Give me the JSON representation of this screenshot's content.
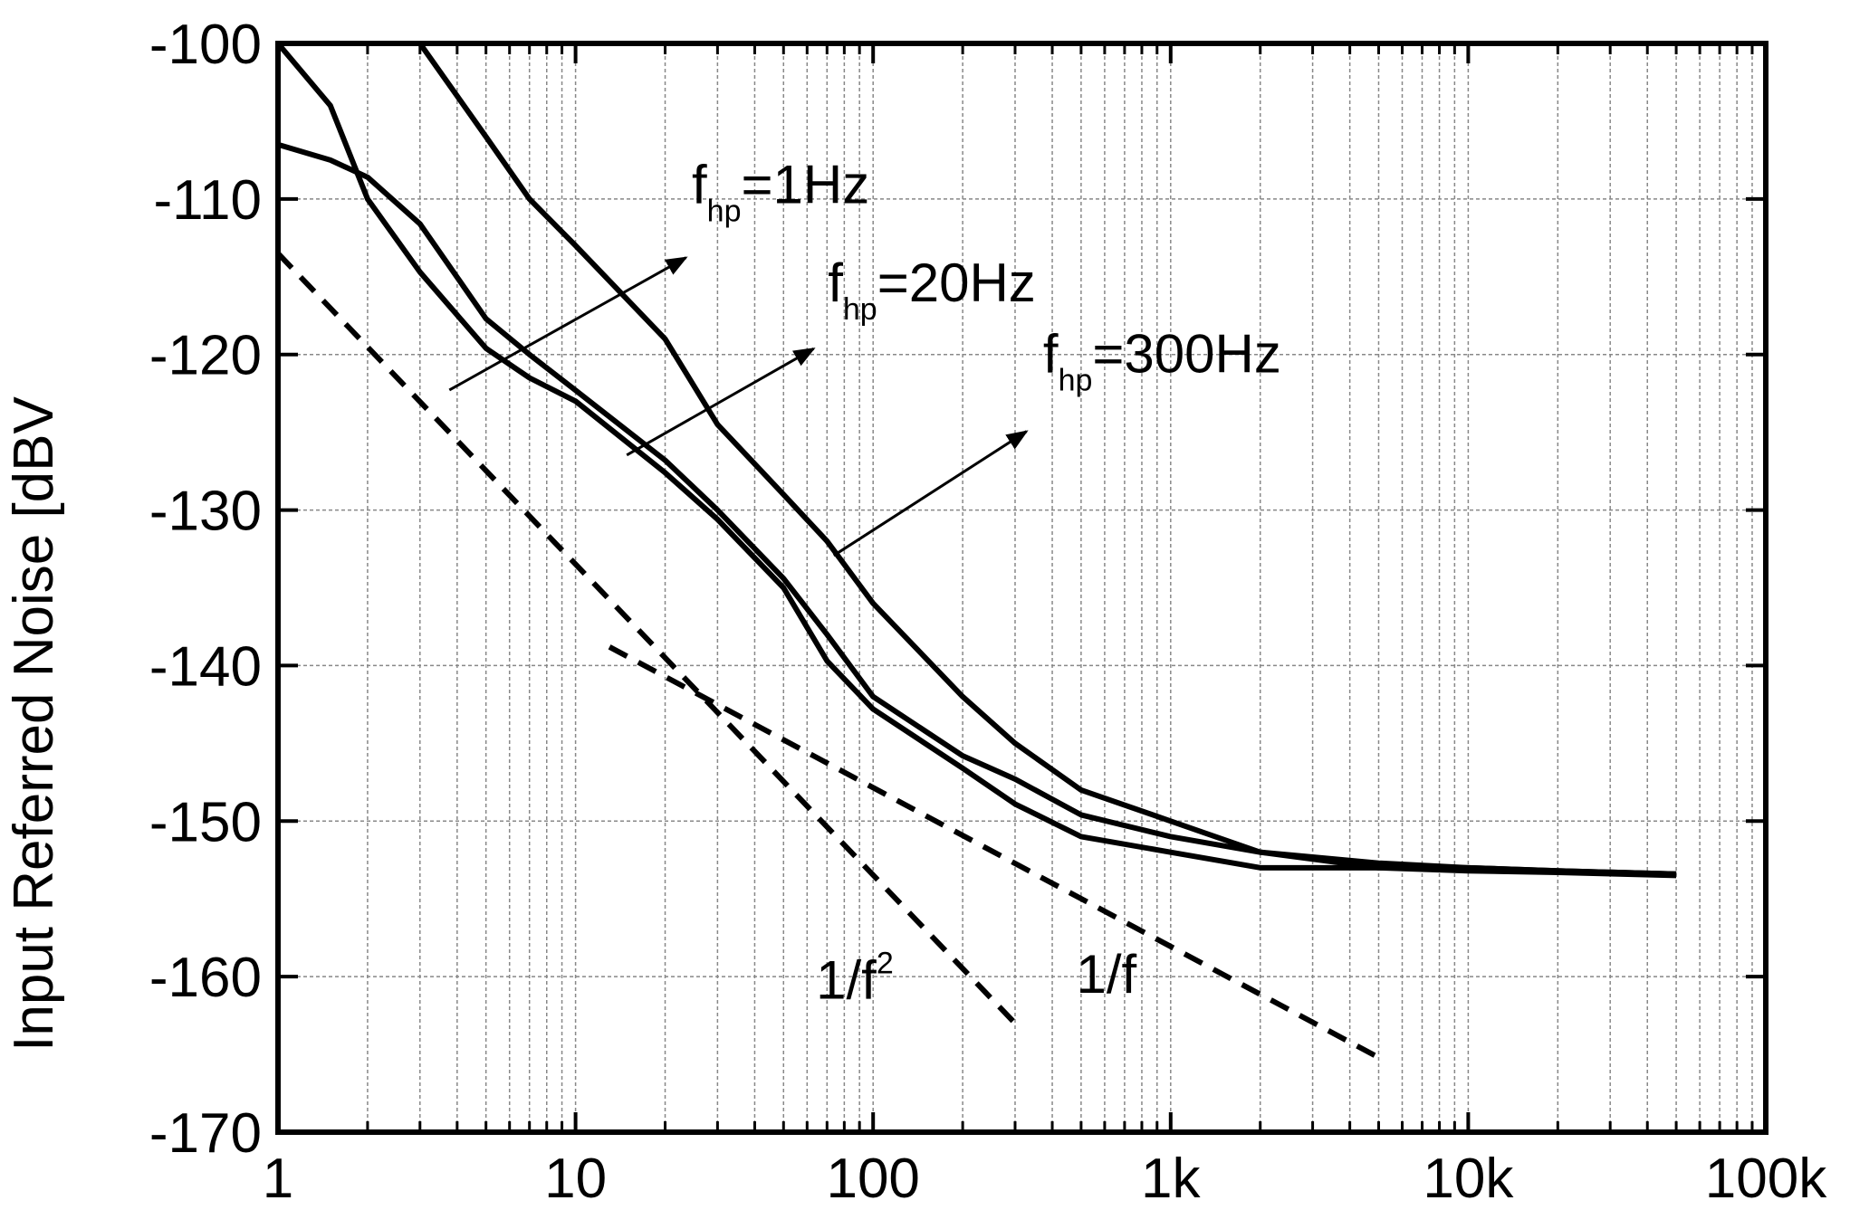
{
  "chart_data": {
    "type": "line",
    "y_label": "Input Referred Noise [dBV",
    "x": [
      1,
      1.5,
      2,
      3,
      5,
      7,
      10,
      20,
      30,
      50,
      70,
      100,
      200,
      300,
      500,
      1000,
      2000,
      5000,
      10000,
      20000,
      50000
    ],
    "series": [
      {
        "color": "#000000",
        "values": [
          null,
          null,
          null,
          -100,
          -106,
          -110,
          -113,
          -119,
          -124.5,
          -129,
          -132,
          -136,
          -142,
          -145,
          -148,
          -150,
          -152,
          -152.7,
          -153,
          -153.2,
          -153.4
        ]
      },
      {
        "color": "#000000",
        "values": [
          -106.5,
          -107.5,
          -108.6,
          -111.6,
          -117.7,
          -120,
          -122.3,
          -126.8,
          -130,
          -134.4,
          -138,
          -142,
          -145.8,
          -147.3,
          -149.6,
          -151,
          -152,
          -153,
          -153,
          -153.2,
          -153.4
        ]
      },
      {
        "color": "#000000",
        "values": [
          -100,
          -104,
          -110,
          -114.7,
          -119.6,
          -121.5,
          -123,
          -127.6,
          -130.6,
          -135,
          -139.7,
          -142.8,
          -146.6,
          -148.9,
          -151,
          -152,
          -153,
          -153,
          -153.2,
          -153.3,
          -153.5
        ]
      }
    ],
    "reference_lines": [
      {
        "x": [
          1,
          300
        ],
        "values": [
          -113.5,
          -163
        ]
      },
      {
        "x": [
          13,
          5000
        ],
        "values": [
          -138.8,
          -165.2
        ]
      }
    ],
    "annotations": [
      {
        "base": "f",
        "sub": "hp",
        "text": "=1Hz"
      },
      {
        "base": "f",
        "sub": "hp",
        "text": "=20Hz"
      },
      {
        "base": "f",
        "sub": "hp",
        "text": "=300Hz"
      }
    ],
    "slope_labels": [
      {
        "text": "1/f",
        "sup": "2"
      },
      {
        "text": "1/f"
      }
    ],
    "xlim": [
      1,
      100000
    ],
    "log_x": true,
    "xticks": [
      1,
      10,
      100,
      {
        "value": 1000,
        "label": "1k"
      },
      {
        "value": 10000,
        "label": "10k"
      },
      {
        "value": 100000,
        "label": "100k"
      }
    ],
    "ylim": [
      -170,
      -100
    ],
    "yticks": [
      -170,
      -160,
      -150,
      -140,
      -130,
      -120,
      -110,
      -100
    ],
    "grid": true
  }
}
